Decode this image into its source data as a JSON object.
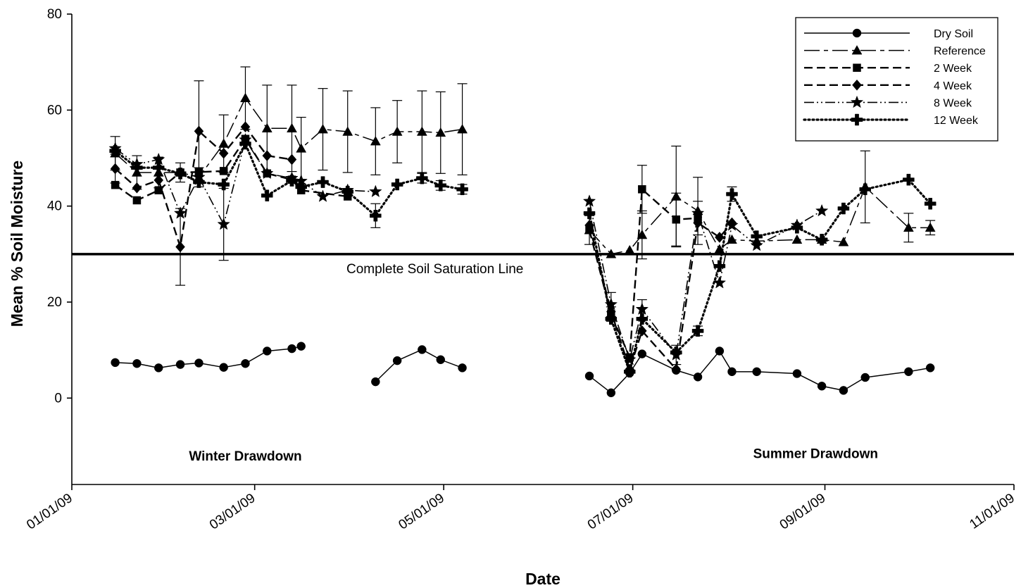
{
  "chart_data": {
    "type": "line",
    "title": "",
    "xlabel": "Date",
    "ylabel": "Mean % Soil Moisture",
    "x_ticks": [
      "01/01/09",
      "03/01/09",
      "05/01/09",
      "07/01/09",
      "09/01/09",
      "11/01/09"
    ],
    "y_ticks": [
      0,
      20,
      40,
      60,
      80
    ],
    "xlim": [
      "2009-01-01",
      "2009-11-01"
    ],
    "ylim": [
      -18,
      80
    ],
    "grid": false,
    "legend_position": "top-right",
    "reference_line": {
      "y": 30,
      "label": "Complete Soil Saturation Line"
    },
    "annotations": [
      {
        "text": "Winter Drawdown",
        "x": "2009-02-26",
        "y": -12
      },
      {
        "text": "Summer Drawdown",
        "x": "2009-08-29",
        "y": -11.5
      }
    ],
    "series": [
      {
        "name": "Dry Soil",
        "marker": "circle",
        "dash": "solid",
        "points": [
          [
            "2009-01-15",
            7.4
          ],
          [
            "2009-01-22",
            7.2
          ],
          [
            "2009-01-29",
            6.3
          ],
          [
            "2009-02-05",
            7.0
          ],
          [
            "2009-02-11",
            7.3
          ],
          [
            "2009-02-19",
            6.4
          ],
          [
            "2009-02-26",
            7.2
          ],
          [
            "2009-03-05",
            9.8
          ],
          [
            "2009-03-13",
            10.3
          ],
          [
            "2009-03-16",
            10.8
          ],
          null,
          [
            "2009-04-09",
            3.4
          ],
          [
            "2009-04-16",
            7.8
          ],
          [
            "2009-04-24",
            10.1
          ],
          [
            "2009-04-30",
            8.0
          ],
          [
            "2009-05-07",
            6.3
          ],
          null,
          [
            "2009-06-17",
            4.6
          ],
          [
            "2009-06-24",
            1.1
          ],
          [
            "2009-06-30",
            5.2
          ],
          [
            "2009-07-04",
            9.2
          ],
          [
            "2009-07-15",
            5.8
          ],
          [
            "2009-07-22",
            4.4
          ],
          [
            "2009-07-29",
            9.8
          ],
          [
            "2009-08-02",
            5.5
          ],
          [
            "2009-08-10",
            5.5
          ],
          [
            "2009-08-23",
            5.1
          ],
          [
            "2009-08-31",
            2.5
          ],
          [
            "2009-09-07",
            1.6
          ],
          [
            "2009-09-14",
            4.3
          ],
          [
            "2009-09-28",
            5.5
          ],
          [
            "2009-10-05",
            6.3
          ]
        ],
        "error": [
          null,
          null,
          null,
          null,
          null,
          null,
          null,
          null,
          null,
          null,
          null,
          null,
          null,
          null,
          null,
          null,
          null,
          null,
          null,
          null,
          null,
          null,
          null,
          null,
          null,
          null,
          null,
          null,
          null,
          null,
          null,
          null
        ]
      },
      {
        "name": "Reference",
        "marker": "triangle",
        "dash": "longdash",
        "points": [
          [
            "2009-01-15",
            51.0
          ],
          [
            "2009-01-22",
            47.0
          ],
          [
            "2009-01-29",
            47.0
          ],
          [
            "2009-02-05",
            47.0
          ],
          [
            "2009-02-11",
            46.0
          ],
          [
            "2009-02-19",
            53.0
          ],
          [
            "2009-02-26",
            62.5
          ],
          [
            "2009-03-05",
            56.2
          ],
          [
            "2009-03-13",
            56.2
          ],
          [
            "2009-03-16",
            52.0
          ],
          [
            "2009-03-23",
            56.0
          ],
          [
            "2009-03-31",
            55.5
          ],
          [
            "2009-04-09",
            53.5
          ],
          [
            "2009-04-16",
            55.5
          ],
          [
            "2009-04-24",
            55.5
          ],
          [
            "2009-04-30",
            55.3
          ],
          [
            "2009-05-07",
            56.0
          ],
          null,
          [
            "2009-06-17",
            35.0
          ],
          [
            "2009-06-24",
            30.0
          ],
          [
            "2009-06-30",
            30.8
          ],
          [
            "2009-07-04",
            34.0
          ],
          [
            "2009-07-15",
            42.0
          ],
          [
            "2009-07-22",
            39.0
          ],
          [
            "2009-07-29",
            31.0
          ],
          [
            "2009-08-02",
            33.0
          ],
          [
            "2009-08-10",
            32.7
          ],
          [
            "2009-08-23",
            33.0
          ],
          [
            "2009-08-31",
            33.0
          ],
          [
            "2009-09-07",
            32.5
          ],
          [
            "2009-09-14",
            44.0
          ],
          [
            "2009-09-28",
            35.5
          ],
          [
            "2009-10-05",
            35.5
          ]
        ],
        "error": [
          3.5,
          3.5,
          3.2,
          2.0,
          2.0,
          6.0,
          6.5,
          9.0,
          9.0,
          6.5,
          8.5,
          8.5,
          7.0,
          6.5,
          8.5,
          8.5,
          9.5,
          null,
          3.0,
          null,
          null,
          5.0,
          10.5,
          7.0,
          null,
          null,
          null,
          null,
          null,
          null,
          7.5,
          3.0,
          1.5
        ]
      },
      {
        "name": "2 Week",
        "marker": "square",
        "dash": "dash",
        "points": [
          [
            "2009-01-15",
            44.4
          ],
          [
            "2009-01-22",
            41.2
          ],
          [
            "2009-01-29",
            43.3
          ],
          [
            "2009-02-05",
            47.0
          ],
          [
            "2009-02-11",
            47.1
          ],
          [
            "2009-02-19",
            47.3
          ],
          [
            "2009-02-26",
            54.0
          ],
          [
            "2009-03-05",
            46.8
          ],
          [
            "2009-03-13",
            45.5
          ],
          [
            "2009-03-16",
            43.3
          ],
          [
            "2009-03-31",
            42.0
          ],
          null,
          [
            "2009-06-17",
            35.0
          ],
          [
            "2009-06-24",
            17.5
          ],
          [
            "2009-06-30",
            8.5
          ],
          [
            "2009-07-04",
            43.5
          ],
          [
            "2009-07-15",
            37.2
          ],
          [
            "2009-07-22",
            37.5
          ]
        ],
        "error": [
          null,
          null,
          null,
          null,
          null,
          null,
          null,
          null,
          null,
          null,
          null,
          null,
          null,
          1.5,
          null,
          5.0,
          5.5,
          3.5
        ]
      },
      {
        "name": "4 Week",
        "marker": "diamond",
        "dash": "dash",
        "points": [
          [
            "2009-01-15",
            47.8
          ],
          [
            "2009-01-22",
            43.8
          ],
          [
            "2009-01-29",
            45.4
          ],
          [
            "2009-02-05",
            31.5
          ],
          [
            "2009-02-11",
            55.6
          ],
          [
            "2009-02-19",
            51.0
          ],
          [
            "2009-02-26",
            56.5
          ],
          [
            "2009-03-05",
            50.5
          ],
          [
            "2009-03-13",
            49.7
          ],
          null,
          [
            "2009-06-17",
            36.0
          ],
          [
            "2009-06-24",
            18.0
          ],
          [
            "2009-06-30",
            6.0
          ],
          [
            "2009-07-04",
            14.0
          ],
          [
            "2009-07-15",
            6.0
          ],
          [
            "2009-07-22",
            36.5
          ],
          [
            "2009-07-29",
            33.5
          ],
          [
            "2009-08-02",
            36.5
          ]
        ],
        "error": [
          3.0,
          null,
          null,
          8.0,
          10.5,
          null,
          null,
          null,
          null,
          null,
          null,
          null,
          null,
          null,
          null,
          null,
          null,
          null
        ]
      },
      {
        "name": "8 Week",
        "marker": "star",
        "dash": "dashdotdot",
        "points": [
          [
            "2009-01-15",
            52.0
          ],
          [
            "2009-01-22",
            48.7
          ],
          [
            "2009-01-29",
            49.7
          ],
          [
            "2009-02-05",
            38.5
          ],
          [
            "2009-02-11",
            46.0
          ],
          [
            "2009-02-19",
            36.2
          ],
          [
            "2009-02-26",
            53.8
          ],
          [
            "2009-03-05",
            46.8
          ],
          [
            "2009-03-13",
            45.8
          ],
          [
            "2009-03-16",
            45.2
          ],
          [
            "2009-03-23",
            42.0
          ],
          [
            "2009-03-31",
            43.3
          ],
          [
            "2009-04-09",
            43.0
          ],
          null,
          [
            "2009-06-17",
            41.0
          ],
          [
            "2009-06-24",
            19.5
          ],
          [
            "2009-06-30",
            8.0
          ],
          [
            "2009-07-04",
            18.5
          ],
          [
            "2009-07-15",
            9.0
          ],
          [
            "2009-07-22",
            38.5
          ],
          [
            "2009-07-29",
            24.0
          ],
          [
            "2009-08-02",
            36.0
          ],
          [
            "2009-08-10",
            31.8
          ],
          [
            "2009-08-23",
            36.0
          ],
          [
            "2009-08-31",
            39.0
          ]
        ],
        "error": [
          null,
          null,
          null,
          null,
          null,
          7.5,
          null,
          null,
          null,
          null,
          null,
          null,
          null,
          null,
          null,
          2.5,
          null,
          2.0,
          2.0,
          null,
          null,
          null,
          null,
          null,
          null
        ]
      },
      {
        "name": "12 Week",
        "marker": "cross",
        "dash": "dot",
        "points": [
          [
            "2009-01-15",
            51.5
          ],
          [
            "2009-01-22",
            48.0
          ],
          [
            "2009-01-29",
            48.0
          ],
          [
            "2009-02-05",
            46.8
          ],
          [
            "2009-02-11",
            45.0
          ],
          [
            "2009-02-19",
            44.5
          ],
          [
            "2009-02-26",
            53.0
          ],
          [
            "2009-03-05",
            42.2
          ],
          [
            "2009-03-13",
            45.3
          ],
          [
            "2009-03-16",
            44.0
          ],
          [
            "2009-03-23",
            45.0
          ],
          [
            "2009-03-31",
            43.0
          ],
          [
            "2009-04-09",
            38.0
          ],
          [
            "2009-04-16",
            44.5
          ],
          [
            "2009-04-24",
            45.8
          ],
          [
            "2009-04-30",
            44.3
          ],
          [
            "2009-05-07",
            43.5
          ],
          null,
          [
            "2009-06-17",
            38.5
          ],
          [
            "2009-06-24",
            16.5
          ],
          [
            "2009-06-30",
            5.5
          ],
          [
            "2009-07-04",
            16.5
          ],
          [
            "2009-07-15",
            9.5
          ],
          [
            "2009-07-22",
            14.0
          ],
          [
            "2009-07-29",
            27.5
          ],
          [
            "2009-08-02",
            42.5
          ],
          [
            "2009-08-10",
            33.7
          ],
          [
            "2009-08-23",
            35.5
          ],
          [
            "2009-08-31",
            33.0
          ],
          [
            "2009-09-07",
            39.5
          ],
          [
            "2009-09-14",
            43.5
          ],
          [
            "2009-09-28",
            45.5
          ],
          [
            "2009-10-05",
            40.5
          ]
        ],
        "error": [
          null,
          null,
          null,
          null,
          null,
          null,
          null,
          null,
          null,
          null,
          null,
          null,
          2.5,
          null,
          1.0,
          1.0,
          1.0,
          null,
          null,
          null,
          null,
          null,
          null,
          1.0,
          null,
          1.5,
          null,
          null,
          null,
          null,
          null,
          null,
          null
        ]
      }
    ]
  }
}
